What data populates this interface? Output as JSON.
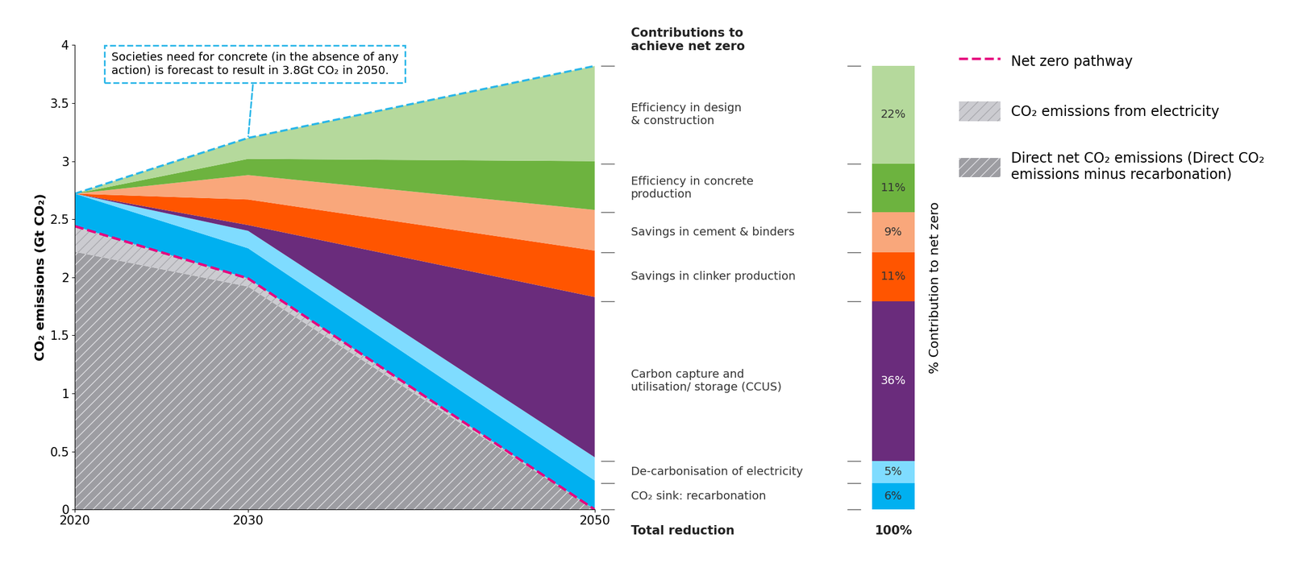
{
  "chart_data": [
    {
      "type": "area",
      "stacked": true,
      "x": [
        2020,
        2030,
        2050
      ],
      "xlim": [
        2020,
        2050
      ],
      "xticks": [
        2020,
        2030,
        2050
      ],
      "ylim": [
        0,
        4
      ],
      "yticks": [
        0,
        0.5,
        1,
        1.5,
        2,
        2.5,
        3,
        3.5,
        4
      ],
      "y_label": "CO₂ emissions (Gt CO₂)",
      "annotation": "Societies need for concrete (in the absence of any\naction) is forecast to result in 3.8Gt CO₂ in 2050.",
      "legend": "upper right",
      "series": [
        {
          "name": "Direct net CO₂ emissions (Direct CO₂\nemissions minus recarbonation)",
          "type": "area",
          "color": "#9d9da2",
          "values": [
            2.22,
            1.92,
            0
          ]
        },
        {
          "name": "CO₂ emissions from electricity",
          "type": "area",
          "color": "#cbcbd0",
          "values": [
            0.22,
            0.07,
            0
          ]
        },
        {
          "type": "area",
          "color": "#00b0f0",
          "values": [
            0.28,
            0.26,
            0.25
          ]
        },
        {
          "type": "area",
          "color": "#7fdcff",
          "values": [
            0,
            0.15,
            0.2
          ]
        },
        {
          "type": "area",
          "color": "#6a2c7c",
          "values": [
            0,
            0.05,
            1.38
          ]
        },
        {
          "type": "area",
          "color": "#ff5500",
          "values": [
            0,
            0.22,
            0.4
          ]
        },
        {
          "type": "area",
          "color": "#f9a77b",
          "values": [
            0,
            0.21,
            0.35
          ]
        },
        {
          "type": "area",
          "color": "#6db33f",
          "values": [
            0,
            0.14,
            0.42
          ]
        },
        {
          "type": "area",
          "color": "#b5d99c",
          "values": [
            0,
            0.18,
            0.82
          ]
        },
        {
          "name": "Net zero pathway",
          "type": "line",
          "color": "#e6007e",
          "line_style": "dashed",
          "values": [
            2.44,
            1.99,
            0
          ]
        }
      ]
    },
    {
      "type": "bar",
      "stacked": true,
      "title": "Contributions to\nachieve net zero",
      "y_label": "% Contribution to net zero",
      "categories": [
        "CO₂ sink: recarbonation",
        "De-carbonisation of electricity",
        "Carbon capture and\nutilisation/ storage (CCUS)",
        "Savings in clinker production",
        "Savings in cement & binders",
        "Efficiency in concrete\nproduction",
        "Efficiency in design\n& construction"
      ],
      "values": [
        6,
        5,
        36,
        11,
        9,
        11,
        22
      ],
      "value_labels": [
        "6%",
        "5%",
        "36%",
        "11%",
        "9%",
        "11%",
        "22%"
      ],
      "colors": [
        "#00b0f0",
        "#7fdcff",
        "#6a2c7c",
        "#ff5500",
        "#f9a77b",
        "#6db33f",
        "#b5d99c"
      ],
      "ylim": [
        0,
        100
      ],
      "data_labels": true,
      "tick_labels": false,
      "total": {
        "label": "Total reduction",
        "value": 100,
        "value_label": "100%"
      }
    }
  ]
}
